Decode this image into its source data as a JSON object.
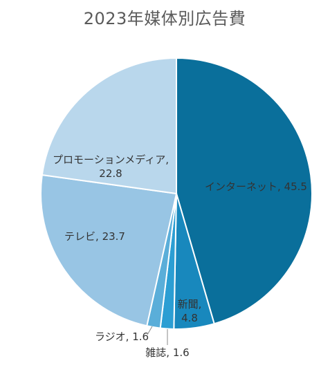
{
  "chart_data": {
    "type": "pie",
    "title": "2023年媒体別広告費",
    "categories": [
      "インターネット",
      "新聞",
      "雑誌",
      "ラジオ",
      "テレビ",
      "プロモーションメディア"
    ],
    "values": [
      45.5,
      4.8,
      1.6,
      1.6,
      23.7,
      22.8
    ],
    "colors": [
      "#0a6f9b",
      "#1888bd",
      "#2b9ed3",
      "#5aaed9",
      "#98c5e4",
      "#b9d7ec"
    ],
    "legend": "none",
    "label_format": "{name}, {value}"
  }
}
